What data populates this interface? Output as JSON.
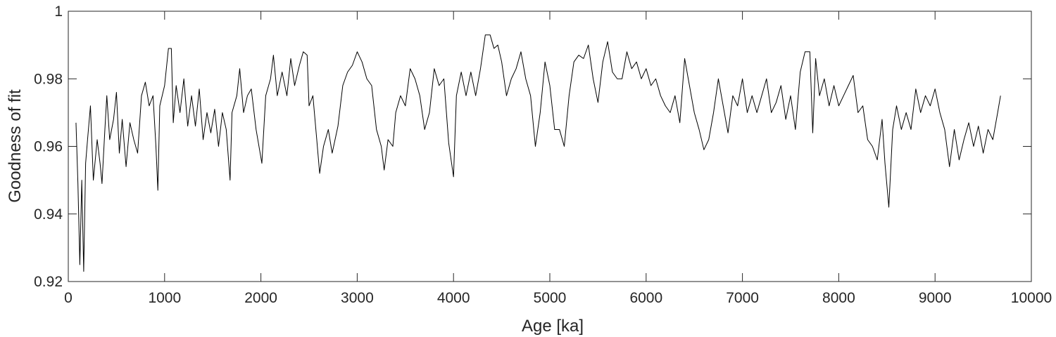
{
  "chart_data": {
    "type": "line",
    "xlabel": "Age [ka]",
    "ylabel": "Goodness of fit",
    "xlim": [
      0,
      10000
    ],
    "ylim": [
      0.92,
      1
    ],
    "xticks": [
      0,
      1000,
      2000,
      3000,
      4000,
      5000,
      6000,
      7000,
      8000,
      9000,
      10000
    ],
    "yticks": [
      0.92,
      0.94,
      0.96,
      0.98,
      1
    ],
    "grid": false,
    "x": [
      80,
      100,
      120,
      140,
      160,
      180,
      200,
      230,
      260,
      300,
      330,
      350,
      380,
      400,
      430,
      470,
      500,
      530,
      560,
      600,
      640,
      680,
      720,
      760,
      800,
      840,
      880,
      910,
      930,
      950,
      1000,
      1040,
      1070,
      1090,
      1120,
      1160,
      1200,
      1240,
      1280,
      1320,
      1360,
      1400,
      1440,
      1480,
      1520,
      1560,
      1600,
      1640,
      1680,
      1700,
      1750,
      1780,
      1820,
      1860,
      1900,
      1950,
      2010,
      2050,
      2100,
      2130,
      2170,
      2220,
      2270,
      2310,
      2350,
      2400,
      2440,
      2480,
      2500,
      2540,
      2580,
      2610,
      2650,
      2700,
      2740,
      2800,
      2850,
      2900,
      2950,
      3000,
      3050,
      3100,
      3150,
      3200,
      3250,
      3280,
      3320,
      3370,
      3400,
      3450,
      3500,
      3550,
      3600,
      3650,
      3700,
      3750,
      3800,
      3850,
      3900,
      3950,
      3980,
      4000,
      4030,
      4080,
      4130,
      4180,
      4230,
      4280,
      4330,
      4380,
      4420,
      4460,
      4500,
      4550,
      4600,
      4650,
      4700,
      4750,
      4800,
      4850,
      4900,
      4950,
      5000,
      5050,
      5100,
      5150,
      5200,
      5250,
      5300,
      5350,
      5400,
      5450,
      5500,
      5550,
      5600,
      5650,
      5700,
      5750,
      5800,
      5850,
      5900,
      5950,
      6000,
      6050,
      6100,
      6150,
      6200,
      6250,
      6300,
      6350,
      6400,
      6450,
      6500,
      6550,
      6600,
      6650,
      6700,
      6750,
      6800,
      6850,
      6900,
      6950,
      7000,
      7050,
      7100,
      7150,
      7200,
      7250,
      7300,
      7350,
      7400,
      7450,
      7500,
      7550,
      7600,
      7650,
      7700,
      7730,
      7760,
      7800,
      7850,
      7900,
      7950,
      8000,
      8050,
      8100,
      8150,
      8200,
      8250,
      8300,
      8350,
      8400,
      8450,
      8480,
      8520,
      8560,
      8600,
      8650,
      8700,
      8750,
      8800,
      8850,
      8900,
      8950,
      9000,
      9050,
      9100,
      9150,
      9200,
      9250,
      9300,
      9350,
      9400,
      9450,
      9500,
      9550,
      9600,
      9650,
      9680
    ],
    "series": [
      {
        "color": "#000000",
        "values": [
          0.967,
          0.949,
          0.925,
          0.95,
          0.923,
          0.955,
          0.962,
          0.972,
          0.95,
          0.962,
          0.955,
          0.949,
          0.965,
          0.975,
          0.962,
          0.968,
          0.976,
          0.958,
          0.968,
          0.954,
          0.967,
          0.962,
          0.958,
          0.975,
          0.979,
          0.972,
          0.975,
          0.96,
          0.947,
          0.972,
          0.978,
          0.989,
          0.989,
          0.967,
          0.978,
          0.97,
          0.98,
          0.966,
          0.975,
          0.966,
          0.977,
          0.962,
          0.97,
          0.964,
          0.971,
          0.96,
          0.97,
          0.965,
          0.95,
          0.97,
          0.975,
          0.983,
          0.97,
          0.975,
          0.977,
          0.965,
          0.955,
          0.975,
          0.98,
          0.987,
          0.975,
          0.982,
          0.975,
          0.986,
          0.978,
          0.984,
          0.988,
          0.987,
          0.972,
          0.975,
          0.962,
          0.952,
          0.96,
          0.965,
          0.958,
          0.966,
          0.978,
          0.982,
          0.984,
          0.988,
          0.985,
          0.98,
          0.978,
          0.965,
          0.96,
          0.953,
          0.962,
          0.96,
          0.97,
          0.975,
          0.972,
          0.983,
          0.98,
          0.975,
          0.965,
          0.97,
          0.983,
          0.978,
          0.98,
          0.961,
          0.955,
          0.951,
          0.975,
          0.982,
          0.975,
          0.982,
          0.975,
          0.983,
          0.993,
          0.993,
          0.989,
          0.99,
          0.985,
          0.975,
          0.98,
          0.983,
          0.988,
          0.98,
          0.975,
          0.96,
          0.97,
          0.985,
          0.978,
          0.965,
          0.965,
          0.96,
          0.975,
          0.985,
          0.987,
          0.986,
          0.99,
          0.98,
          0.973,
          0.985,
          0.991,
          0.982,
          0.98,
          0.98,
          0.988,
          0.983,
          0.985,
          0.98,
          0.983,
          0.978,
          0.98,
          0.975,
          0.972,
          0.97,
          0.975,
          0.967,
          0.986,
          0.978,
          0.97,
          0.965,
          0.959,
          0.962,
          0.97,
          0.98,
          0.972,
          0.964,
          0.975,
          0.972,
          0.98,
          0.97,
          0.975,
          0.97,
          0.975,
          0.98,
          0.97,
          0.973,
          0.978,
          0.968,
          0.975,
          0.965,
          0.982,
          0.988,
          0.988,
          0.964,
          0.986,
          0.975,
          0.98,
          0.972,
          0.978,
          0.972,
          0.975,
          0.978,
          0.981,
          0.97,
          0.972,
          0.962,
          0.96,
          0.956,
          0.968,
          0.955,
          0.942,
          0.965,
          0.972,
          0.965,
          0.97,
          0.965,
          0.977,
          0.97,
          0.975,
          0.972,
          0.977,
          0.97,
          0.965,
          0.954,
          0.965,
          0.956,
          0.962,
          0.967,
          0.96,
          0.966,
          0.958,
          0.965,
          0.962,
          0.97,
          0.975
        ]
      }
    ]
  }
}
